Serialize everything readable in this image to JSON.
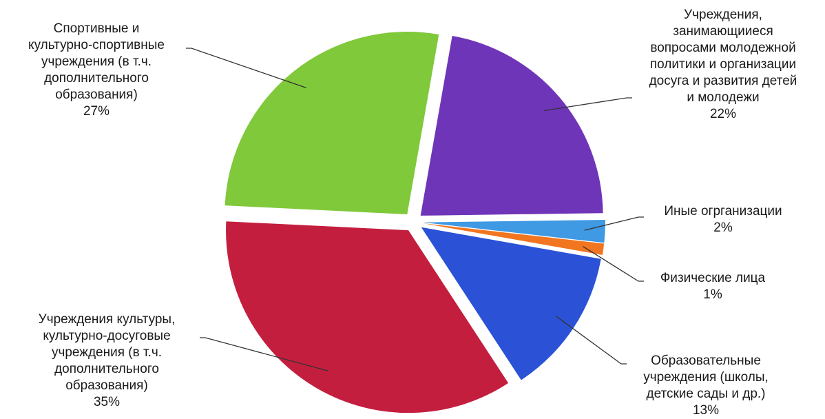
{
  "chart_data": {
    "type": "pie",
    "title": "",
    "slices": [
      {
        "label": "Учреждения,\nзанимающииеся\nвопросами молодежной\nполитики и организации\nдосуга и развития детей\nи молодежи",
        "value": 22,
        "value_label": "22%",
        "color": "#6e35b8"
      },
      {
        "label": "Иные огрганизации",
        "value": 2,
        "value_label": "2%",
        "color": "#3f99e3"
      },
      {
        "label": "Физические лица",
        "value": 1,
        "value_label": "1%",
        "color": "#f27520"
      },
      {
        "label": "Образовательные\nучреждения (школы,\nдетские сады и др.)",
        "value": 13,
        "value_label": "13%",
        "color": "#2b52d6"
      },
      {
        "label": "Учреждения культуры,\nкультурно-досуговые\nучреждения (в т.ч.\nдополнительного\nобразования)",
        "value": 35,
        "value_label": "35%",
        "color": "#c41e3f"
      },
      {
        "label": "Спортивные и\nкультурно-спортивные\nучреждения (в т.ч.\nдополнительного\nобразования)",
        "value": 27,
        "value_label": "27%",
        "color": "#7fc93a"
      }
    ]
  }
}
